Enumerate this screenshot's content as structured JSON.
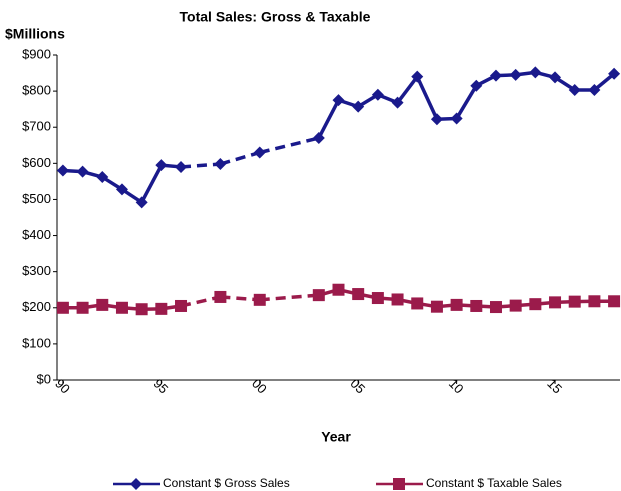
{
  "chart_data": {
    "type": "line",
    "title": "Total Sales: Gross & Taxable",
    "y_label": "$Millions",
    "x_label": "Year",
    "x": [
      1990,
      1991,
      1992,
      1993,
      1994,
      1995,
      1996,
      1998,
      2000,
      2003,
      2004,
      2005,
      2006,
      2007,
      2008,
      2009,
      2010,
      2011,
      2012,
      2013,
      2014,
      2015,
      2016,
      2017,
      2018
    ],
    "series": [
      {
        "name": "Constant $ Gross Sales",
        "color": "#1a1a8c",
        "marker": "diamond",
        "values": [
          580,
          577,
          562,
          528,
          492,
          595,
          590,
          598,
          630,
          670,
          775,
          757,
          790,
          768,
          840,
          722,
          724,
          815,
          843,
          845,
          852,
          838,
          803,
          803,
          848
        ]
      },
      {
        "name": "Constant $ Taxable Sales",
        "color": "#9b1b4b",
        "marker": "square",
        "values": [
          200,
          200,
          208,
          200,
          196,
          197,
          205,
          230,
          222,
          235,
          250,
          238,
          227,
          223,
          212,
          203,
          208,
          205,
          202,
          206,
          210,
          215,
          217,
          218,
          218
        ]
      }
    ],
    "xlim": [
      1989.7,
      2018.3
    ],
    "xticks": [
      {
        "value": 1990,
        "label": "90"
      },
      {
        "value": 1995,
        "label": "95"
      },
      {
        "value": 2000,
        "label": "00"
      },
      {
        "value": 2005,
        "label": "05"
      },
      {
        "value": 2010,
        "label": "10"
      },
      {
        "value": 2015,
        "label": "15"
      }
    ],
    "ylim": [
      0,
      900
    ],
    "yticks": [
      {
        "value": 0,
        "label": "$0"
      },
      {
        "value": 100,
        "label": "$100"
      },
      {
        "value": 200,
        "label": "$200"
      },
      {
        "value": 300,
        "label": "$300"
      },
      {
        "value": 400,
        "label": "$400"
      },
      {
        "value": 500,
        "label": "$500"
      },
      {
        "value": 600,
        "label": "$600"
      },
      {
        "value": 700,
        "label": "$700"
      },
      {
        "value": 800,
        "label": "$800"
      },
      {
        "value": 900,
        "label": "$900"
      }
    ],
    "grid": false,
    "legend": "bottom"
  }
}
